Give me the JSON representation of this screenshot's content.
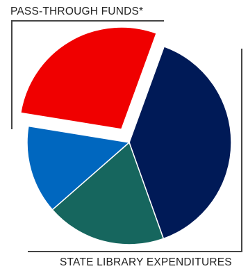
{
  "chart_data": {
    "type": "pie",
    "callouts": {
      "top": "PASS-THROUGH FUNDS*",
      "bottom": "STATE LIBRARY EXPENDITURES"
    },
    "slices": [
      {
        "value": 39,
        "color": "#001a57",
        "exploded": false
      },
      {
        "value": 19,
        "color": "#16665e",
        "exploded": false
      },
      {
        "value": 14,
        "color": "#0067bf",
        "exploded": false
      },
      {
        "value": 28,
        "color": "#f00000",
        "exploded": true
      }
    ]
  }
}
